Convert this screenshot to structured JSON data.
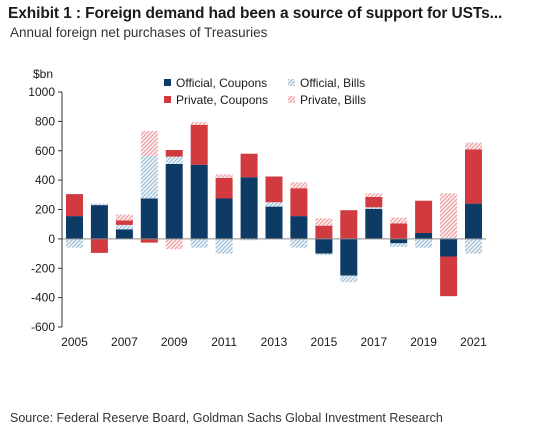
{
  "title": "Exhibit 1 : Foreign demand had been a source of support for USTs...",
  "subtitle": "Annual foreign net purchases of Treasuries",
  "source": "Source: Federal Reserve Board, Goldman Sachs Global Investment Research",
  "colors": {
    "official_coupons": "#0d3b66",
    "official_bills": "#a9c6dd",
    "private_coupons": "#d13a3f",
    "private_bills": "#f0a8aa"
  },
  "chart_data": {
    "type": "bar",
    "stacked": true,
    "title": "",
    "ylabel": "$bn",
    "xlabel": "",
    "ylim": [
      -600,
      1000
    ],
    "yticks": [
      -600,
      -400,
      -200,
      0,
      200,
      400,
      600,
      800,
      1000
    ],
    "grid": false,
    "legend_position": "top",
    "categories": [
      "2005",
      "2006",
      "2007",
      "2008",
      "2009",
      "2010",
      "2011",
      "2012",
      "2013",
      "2014",
      "2015",
      "2016",
      "2017",
      "2018",
      "2019",
      "2020",
      "2021"
    ],
    "x_tick_labels": [
      "2005",
      "2007",
      "2009",
      "2011",
      "2013",
      "2015",
      "2017",
      "2019",
      "2021"
    ],
    "series": [
      {
        "name": "Official, Coupons",
        "color_key": "official_coupons",
        "hatched": false,
        "values": [
          155,
          230,
          65,
          275,
          510,
          505,
          275,
          420,
          220,
          155,
          -100,
          -250,
          205,
          -30,
          40,
          -120,
          240
        ]
      },
      {
        "name": "Official, Bills",
        "color_key": "official_bills",
        "hatched": true,
        "values": [
          -60,
          10,
          30,
          290,
          50,
          -60,
          -100,
          -10,
          30,
          -60,
          -10,
          -45,
          10,
          -25,
          -60,
          10,
          -100
        ]
      },
      {
        "name": "Private, Coupons",
        "color_key": "private_coupons",
        "hatched": false,
        "values": [
          150,
          -95,
          30,
          -25,
          45,
          270,
          140,
          160,
          175,
          190,
          90,
          195,
          70,
          105,
          220,
          -270,
          370
        ]
      },
      {
        "name": "Private, Bills",
        "color_key": "private_bills",
        "hatched": true,
        "values": [
          0,
          0,
          40,
          170,
          -70,
          20,
          25,
          0,
          0,
          40,
          50,
          0,
          25,
          40,
          0,
          300,
          45
        ]
      }
    ]
  }
}
